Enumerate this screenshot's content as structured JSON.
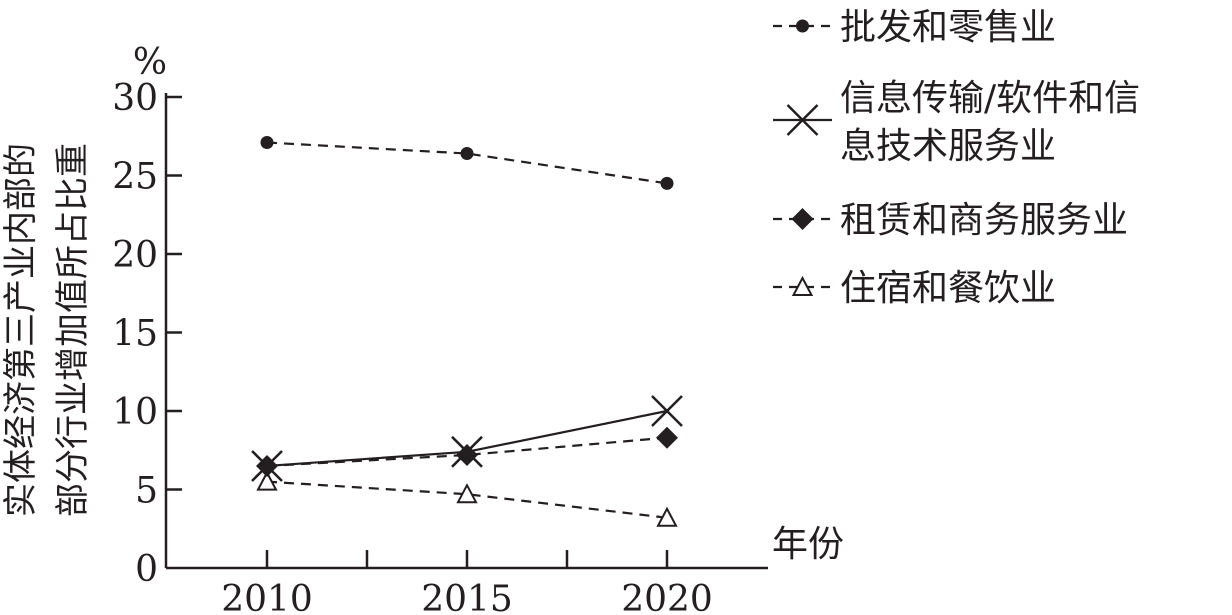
{
  "chart_data": {
    "type": "line",
    "ylabel_lines": [
      "实体经济第三产业内部的",
      "部分行业增加值所占比重"
    ],
    "yunit": "%",
    "xlabel": "年份",
    "categories": [
      "2010",
      "2015",
      "2020"
    ],
    "ylim": [
      0,
      30
    ],
    "yticks": [
      "0",
      "5",
      "10",
      "15",
      "20",
      "25",
      "30"
    ],
    "grid": false,
    "legend_position": "right",
    "series": [
      {
        "name": "批发和零售业",
        "values": [
          27.1,
          26.4,
          24.5
        ],
        "marker": "dot",
        "line": "dashed"
      },
      {
        "name": "信息传输/软件和信息技术服务业",
        "legend_lines": [
          "信息传输/软件和信",
          "息技术服务业"
        ],
        "values": [
          6.5,
          7.4,
          10.0
        ],
        "marker": "x",
        "line": "solid"
      },
      {
        "name": "租赁和商务服务业",
        "values": [
          6.5,
          7.2,
          8.3
        ],
        "marker": "diamond",
        "line": "dashed"
      },
      {
        "name": "住宿和餐饮业",
        "values": [
          5.5,
          4.7,
          3.2
        ],
        "marker": "triangle",
        "line": "dashed"
      }
    ]
  }
}
